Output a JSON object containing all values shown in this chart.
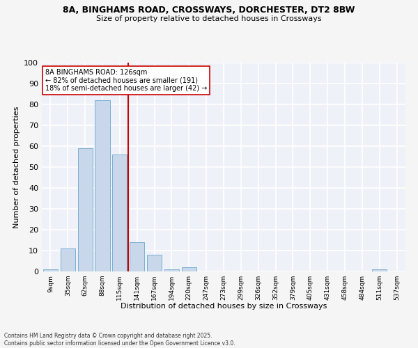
{
  "title_line1": "8A, BINGHAMS ROAD, CROSSWAYS, DORCHESTER, DT2 8BW",
  "title_line2": "Size of property relative to detached houses in Crossways",
  "xlabel": "Distribution of detached houses by size in Crossways",
  "ylabel": "Number of detached properties",
  "bar_labels": [
    "9sqm",
    "35sqm",
    "62sqm",
    "88sqm",
    "115sqm",
    "141sqm",
    "167sqm",
    "194sqm",
    "220sqm",
    "247sqm",
    "273sqm",
    "299sqm",
    "326sqm",
    "352sqm",
    "379sqm",
    "405sqm",
    "431sqm",
    "458sqm",
    "484sqm",
    "511sqm",
    "537sqm"
  ],
  "bar_values": [
    1,
    11,
    59,
    82,
    56,
    14,
    8,
    1,
    2,
    0,
    0,
    0,
    0,
    0,
    0,
    0,
    0,
    0,
    0,
    1,
    0
  ],
  "bar_color": "#c8d8ea",
  "bar_edgecolor": "#7aafd4",
  "vline_x": 4.5,
  "vline_color": "#cc0000",
  "annotation_text": "8A BINGHAMS ROAD: 126sqm\n← 82% of detached houses are smaller (191)\n18% of semi-detached houses are larger (42) →",
  "annotation_box_color": "#ffffff",
  "annotation_box_edgecolor": "#cc0000",
  "ylim": [
    0,
    100
  ],
  "yticks": [
    0,
    10,
    20,
    30,
    40,
    50,
    60,
    70,
    80,
    90,
    100
  ],
  "background_color": "#eef2f8",
  "grid_color": "#ffffff",
  "footer_line1": "Contains HM Land Registry data © Crown copyright and database right 2025.",
  "footer_line2": "Contains public sector information licensed under the Open Government Licence v3.0."
}
